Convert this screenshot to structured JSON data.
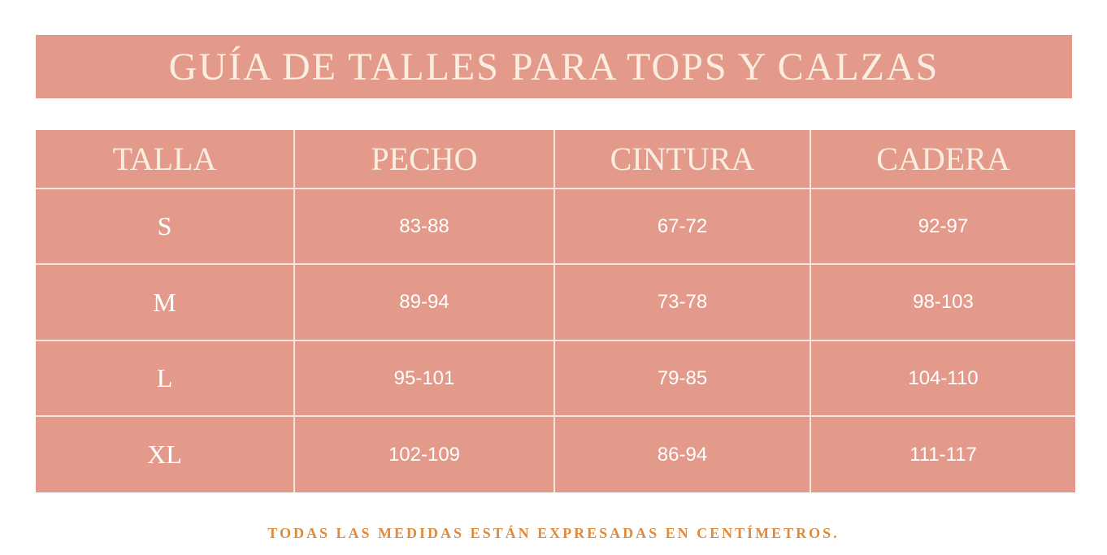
{
  "header": {
    "title": "GUÍA DE TALLES PARA TOPS Y CALZAS"
  },
  "table": {
    "columns": [
      "TALLA",
      "PECHO",
      "CINTURA",
      "CADERA"
    ],
    "rows": [
      [
        "S",
        "83-88",
        "67-72",
        "92-97"
      ],
      [
        "M",
        "89-94",
        "73-78",
        "98-103"
      ],
      [
        "L",
        "95-101",
        "79-85",
        "104-110"
      ],
      [
        "XL",
        "102-109",
        "86-94",
        "111-117"
      ]
    ]
  },
  "footer": {
    "note": "TODAS LAS MEDIDAS ESTÁN EXPRESADAS EN CENTÍMETROS."
  }
}
